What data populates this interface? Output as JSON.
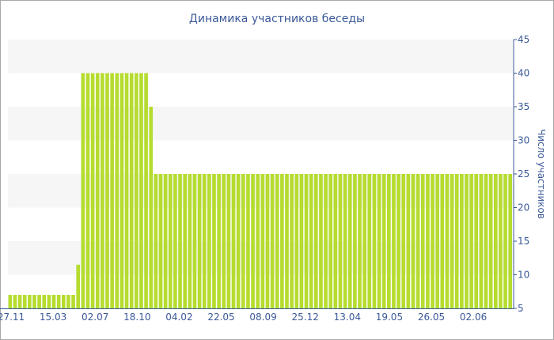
{
  "chart_data": {
    "type": "bar",
    "title": "Динамика участников беседы",
    "ylabel": "Число участников",
    "xlabel": "",
    "ylim": [
      5,
      45
    ],
    "yticks": [
      5,
      10,
      15,
      20,
      25,
      30,
      35,
      40,
      45
    ],
    "xtick_labels": [
      "27.11",
      "15.03",
      "02.07",
      "18.10",
      "04.02",
      "22.05",
      "08.09",
      "25.12",
      "13.04",
      "19.05",
      "26.05",
      "02.06"
    ],
    "grid": "horizontal alternating bands",
    "bar_color": "#b5dc2f",
    "values": [
      7,
      7,
      7,
      7,
      7,
      7,
      7,
      7,
      7,
      7,
      7,
      7,
      7,
      7,
      11.5,
      40,
      40,
      40,
      40,
      40,
      40,
      40,
      40,
      40,
      40,
      40,
      40,
      40,
      40,
      35,
      25,
      25,
      25,
      25,
      25,
      25,
      25,
      25,
      25,
      25,
      25,
      25,
      25,
      25,
      25,
      25,
      25,
      25,
      25,
      25,
      25,
      25,
      25,
      25,
      25,
      25,
      25,
      25,
      25,
      25,
      25,
      25,
      25,
      25,
      25,
      25,
      25,
      25,
      25,
      25,
      25,
      25,
      25,
      25,
      25,
      25,
      25,
      25,
      25,
      25,
      25,
      25,
      25,
      25,
      25,
      25,
      25,
      25,
      25,
      25,
      25,
      25,
      25,
      25,
      25,
      25,
      25,
      25,
      25,
      25,
      25,
      25,
      25,
      25
    ]
  }
}
